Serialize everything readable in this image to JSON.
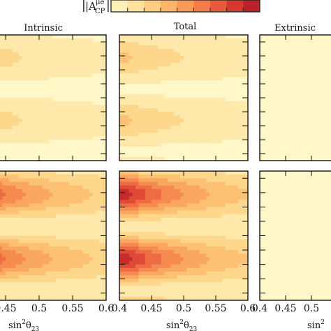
{
  "chart_data": {
    "type": "heatmap",
    "colorbar": {
      "label_main": "|A",
      "label_sup": "μe",
      "label_sub": "CP",
      "label_bar": "|",
      "colors": [
        "#fff7c8",
        "#fee7a6",
        "#fdd485",
        "#fcb86a",
        "#f99a56",
        "#f37848",
        "#e4533a",
        "#cc2c2c",
        "#a81a2a"
      ]
    },
    "panel_titles": [
      "Intrinsic",
      "Total",
      "Extrinsic"
    ],
    "x_axis": {
      "label_main": "sin",
      "label_sup": "2",
      "label_theta": "θ",
      "label_sub": "23",
      "range": [
        0.4,
        0.6
      ],
      "ticks": [
        0.4,
        0.45,
        0.5,
        0.55,
        0.6
      ],
      "tick_labels": [
        "0.4",
        "0.45",
        "0.5",
        "0.55",
        "0.6"
      ]
    },
    "panels": [
      {
        "row": 0,
        "col": 0,
        "title": "Intrinsic",
        "amplitude": 0.26,
        "bright_fraction": 0.0
      },
      {
        "row": 0,
        "col": 1,
        "title": "Total",
        "amplitude": 0.3,
        "bright_fraction": 0.0
      },
      {
        "row": 0,
        "col": 2,
        "title": "Extrinsic",
        "amplitude": 0.02,
        "bright_fraction": 0.0
      },
      {
        "row": 1,
        "col": 0,
        "title": "Intrinsic",
        "amplitude": 0.8,
        "bright_fraction": 0.0
      },
      {
        "row": 1,
        "col": 1,
        "title": "Total",
        "amplitude": 0.9,
        "bright_fraction": 0.0
      },
      {
        "row": 1,
        "col": 2,
        "title": "Extrinsic",
        "amplitude": 0.03,
        "bright_fraction": 0.0
      }
    ],
    "grid": false
  }
}
